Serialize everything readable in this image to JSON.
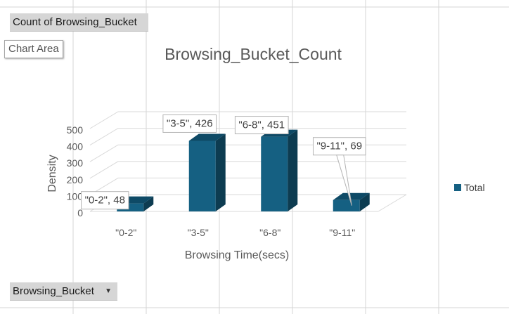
{
  "pivot": {
    "value_field": "Count of Browsing_Bucket",
    "axis_field": "Browsing_Bucket",
    "tooltip": "Chart Area"
  },
  "chart_data": {
    "type": "bar",
    "title": "Browsing_Bucket_Count",
    "xlabel": "Browsing Time(secs)",
    "ylabel": "Density",
    "categories": [
      "\"0-2\"",
      "\"3-5\"",
      "\"6-8\"",
      "\"9-11\""
    ],
    "series": [
      {
        "name": "Total",
        "values": [
          48,
          426,
          451,
          69
        ]
      }
    ],
    "data_labels": [
      "\"0-2\", 48",
      "\"3-5\", 426",
      "\"6-8\", 451",
      "\"9-11\", 69"
    ],
    "yticks": [
      "0",
      "100",
      "200",
      "300",
      "400",
      "500"
    ],
    "ylim": [
      0,
      500
    ],
    "grid": true,
    "legend": "right",
    "style": "3d-column",
    "colors": {
      "front": "#156082",
      "side": "#0d3c51",
      "top": "#0e4a66",
      "grid": "#d9d9d9",
      "text": "#595959"
    }
  }
}
